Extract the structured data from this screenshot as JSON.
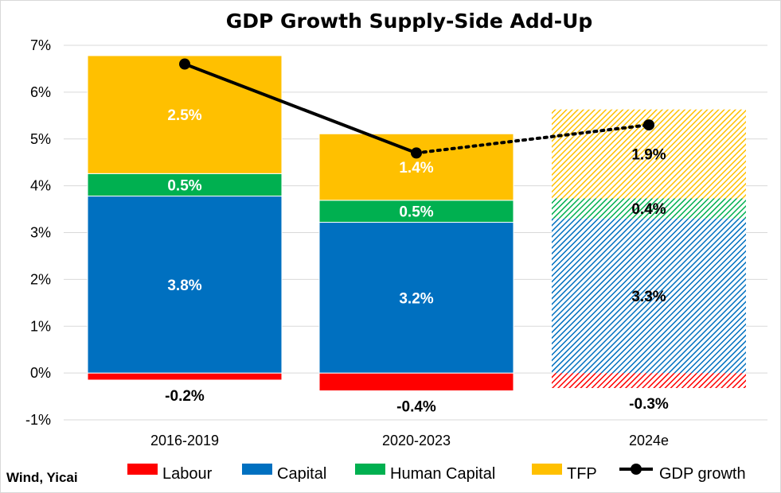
{
  "chart_data": {
    "type": "bar",
    "stacked": true,
    "title": "GDP Growth Supply-Side Add-Up",
    "categories": [
      "2016-2019",
      "2020-2023",
      "2024e"
    ],
    "ylim": [
      -1,
      7
    ],
    "yticks": [
      "-1%",
      "0%",
      "1%",
      "2%",
      "3%",
      "4%",
      "5%",
      "6%",
      "7%"
    ],
    "grid": true,
    "legend_position": "bottom",
    "series": [
      {
        "name": "Labour",
        "color": "#ff0000",
        "values": [
          -0.15,
          -0.38,
          -0.32
        ],
        "labels": [
          "-0.2%",
          "-0.4%",
          "-0.3%"
        ]
      },
      {
        "name": "Capital",
        "color": "#0070c0",
        "values": [
          3.78,
          3.22,
          3.3
        ],
        "labels": [
          "3.8%",
          "3.2%",
          "3.3%"
        ]
      },
      {
        "name": "Human Capital",
        "color": "#00b050",
        "values": [
          0.48,
          0.47,
          0.43
        ],
        "labels": [
          "0.5%",
          "0.5%",
          "0.4%"
        ]
      },
      {
        "name": "TFP",
        "color": "#ffc000",
        "values": [
          2.52,
          1.42,
          1.9
        ],
        "labels": [
          "2.5%",
          "1.4%",
          "1.9%"
        ]
      }
    ],
    "line_series": {
      "name": "GDP growth",
      "color": "#000000",
      "values": [
        6.6,
        4.7,
        5.3
      ]
    },
    "hatched_category": "2024e"
  },
  "source": "Wind, Yicai"
}
